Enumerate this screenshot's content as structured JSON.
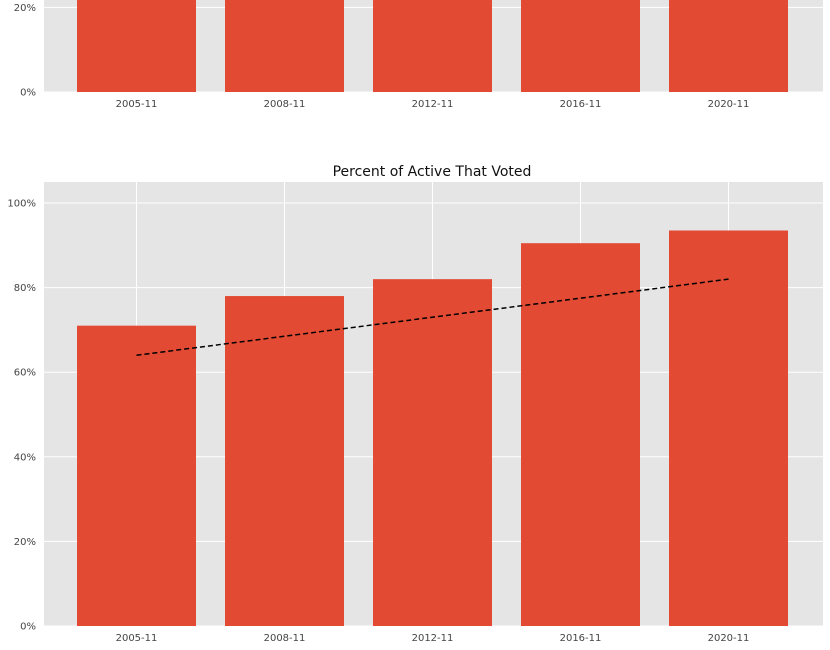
{
  "chart_data": [
    {
      "type": "bar",
      "title": "",
      "categories": [
        "2005-11",
        "2008-11",
        "2012-11",
        "2016-11",
        "2020-11"
      ],
      "y_ticks": [
        "0%",
        "20%"
      ],
      "ylim": [
        0,
        23
      ],
      "grid": true,
      "colors": {
        "bar": "#E24A33",
        "background": "#E5E5E5",
        "grid": "#FFFFFF"
      }
    },
    {
      "type": "bar",
      "title": "Percent of Active That Voted",
      "categories": [
        "2005-11",
        "2008-11",
        "2012-11",
        "2016-11",
        "2020-11"
      ],
      "values": [
        71,
        78,
        82,
        90.5,
        93.5
      ],
      "y_ticks": [
        "0%",
        "20%",
        "40%",
        "60%",
        "80%",
        "100%"
      ],
      "ylim": [
        0,
        105
      ],
      "trendline": {
        "style": "dashed",
        "color": "#000000",
        "start": 64,
        "end": 82
      },
      "grid": true,
      "colors": {
        "bar": "#E24A33",
        "background": "#E5E5E5",
        "grid": "#FFFFFF"
      }
    }
  ]
}
